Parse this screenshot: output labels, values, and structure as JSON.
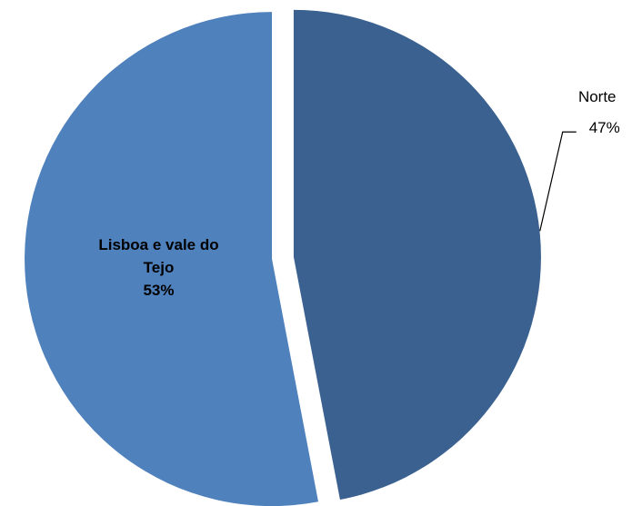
{
  "chart_data": {
    "type": "pie",
    "categories": [
      "Norte",
      "Lisboa e vale do Tejo"
    ],
    "values": [
      47,
      53
    ],
    "value_labels": [
      "47%",
      "53%"
    ],
    "colors": [
      "#3b6190",
      "#4f81bd"
    ]
  }
}
